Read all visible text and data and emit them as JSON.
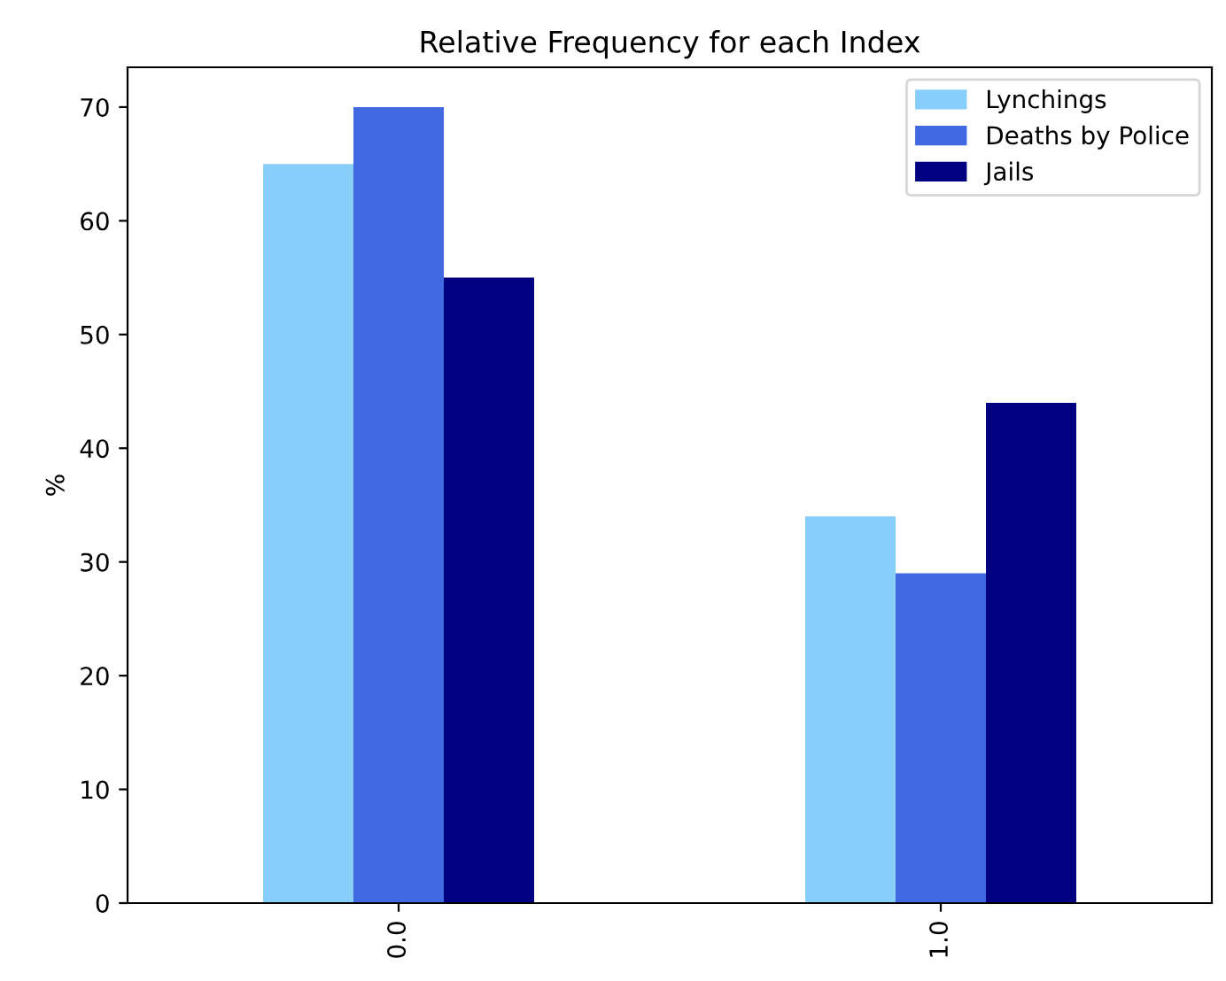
{
  "chart_data": {
    "type": "bar",
    "title": "Relative Frequency for each Index",
    "ylabel": "%",
    "categories": [
      "0.0",
      "1.0"
    ],
    "series": [
      {
        "name": "Lynchings",
        "color": "#87cefa",
        "values": [
          65,
          34
        ]
      },
      {
        "name": "Deaths by Police",
        "color": "#4169e1",
        "values": [
          70,
          29
        ]
      },
      {
        "name": "Jails",
        "color": "#000080",
        "values": [
          55,
          44
        ]
      }
    ],
    "ylim": [
      0,
      73.5
    ],
    "yticks": [
      0,
      10,
      20,
      30,
      40,
      50,
      60,
      70
    ],
    "grid": false,
    "legend": "top right"
  }
}
